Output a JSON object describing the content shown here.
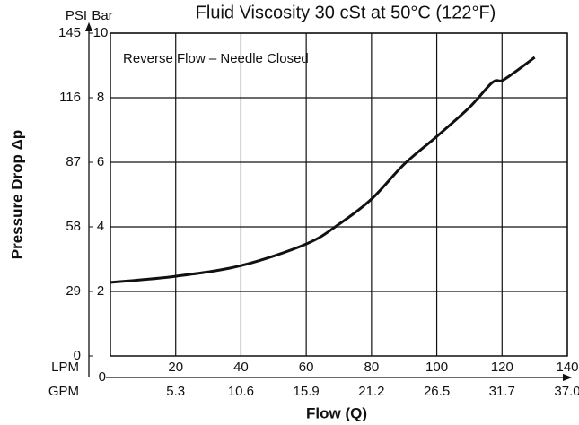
{
  "chart_data": {
    "type": "line",
    "title": "Fluid Viscosity 30 cSt at 50°C (122°F)",
    "annotation": "Reverse Flow – Needle Closed",
    "y_label": "Pressure Drop Δp",
    "x_label": "Flow (Q)",
    "y_unit": "Bar",
    "y2_unit": "PSI",
    "x_unit": "LPM",
    "x2_unit": "GPM",
    "x": [
      0,
      20,
      40,
      60,
      70,
      80,
      90,
      100,
      110,
      117,
      120,
      124,
      130
    ],
    "series": [
      {
        "name": "Reverse Flow – Needle Closed",
        "color": "#111111",
        "values": [
          2.28,
          2.47,
          2.8,
          3.47,
          4.08,
          4.86,
          5.94,
          6.8,
          7.7,
          8.47,
          8.53,
          8.8,
          9.25
        ]
      }
    ],
    "xlim": [
      0,
      140
    ],
    "xticks": [
      0,
      20,
      40,
      60,
      80,
      100,
      120,
      140
    ],
    "x2ticks": [
      {
        "value": 20,
        "label": "5.3"
      },
      {
        "value": 40,
        "label": "10.6"
      },
      {
        "value": 60,
        "label": "15.9"
      },
      {
        "value": 80,
        "label": "21.2"
      },
      {
        "value": 100,
        "label": "26.5"
      },
      {
        "value": 120,
        "label": "31.7"
      },
      {
        "value": 140,
        "label": "37.0"
      }
    ],
    "ylim": [
      0,
      10
    ],
    "yticks": [
      2,
      4,
      6,
      8,
      10
    ],
    "y2lim": [
      0,
      145
    ],
    "y2ticks": [
      0,
      29,
      58,
      87,
      116,
      145
    ],
    "grid": true
  }
}
